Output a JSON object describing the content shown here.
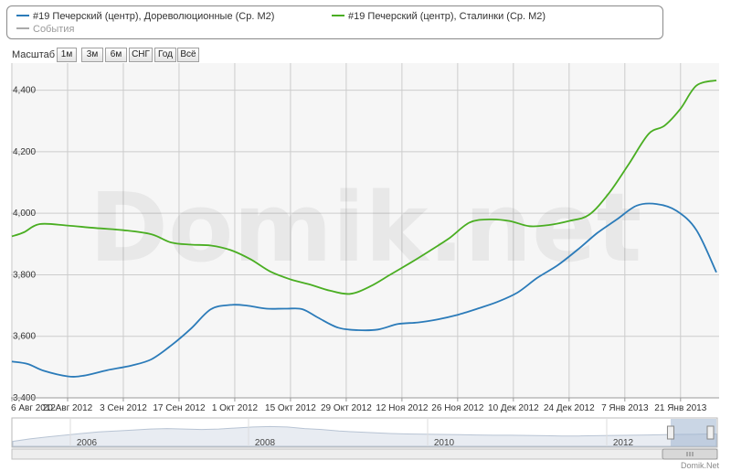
{
  "legend": {
    "series1": "#19 Печерский (центр), Дореволюционные (Ср. М2)",
    "series2": "#19 Печерский (центр), Сталинки (Ср. М2)",
    "events": "События"
  },
  "zoom": {
    "label": "Масштаб",
    "buttons": [
      "1м",
      "3м",
      "6м",
      "СНГ",
      "Год",
      "Всё"
    ]
  },
  "watermark": "Domik.net",
  "credit": "Domik.Net",
  "colors": {
    "series1": "#2b7bb9",
    "series2": "#4aae22",
    "events": "#aaaaaa",
    "grid": "#cccccc",
    "navigator_fill": "#e8ecf2",
    "navigator_line": "#b8c4d4",
    "navigator_mask": "#9fb4d0",
    "plot_background": "#f6f6f6"
  },
  "navigator": {
    "years": [
      "2006",
      "2008",
      "2010",
      "2012"
    ],
    "profile": [
      0.2,
      0.3,
      0.38,
      0.45,
      0.52,
      0.58,
      0.62,
      0.66,
      0.7,
      0.72,
      0.7,
      0.68,
      0.7,
      0.74,
      0.78,
      0.8,
      0.78,
      0.72,
      0.68,
      0.62,
      0.58,
      0.55,
      0.52,
      0.5,
      0.49,
      0.48,
      0.47,
      0.46,
      0.45,
      0.45,
      0.44,
      0.43,
      0.42,
      0.42,
      0.43,
      0.44,
      0.45,
      0.46,
      0.47,
      0.48,
      0.49,
      0.5
    ],
    "selected_from_fraction": 0.935,
    "selected_to_fraction": 1.0
  },
  "chart_data": {
    "type": "line",
    "x_labels": [
      "6 Авг 2012",
      "20 Авг 2012",
      "3 Сен 2012",
      "17 Сен 2012",
      "1 Окт 2012",
      "15 Окт 2012",
      "29 Окт 2012",
      "12 Ноя 2012",
      "26 Ноя 2012",
      "10 Дек 2012",
      "24 Дек 2012",
      "7 Янв 2013",
      "21 Янв 2013"
    ],
    "x_start": "2012-08-06",
    "x_end": "2013-01-30",
    "ylim": [
      3400,
      4500
    ],
    "y_ticks": [
      3400,
      3600,
      3800,
      4000,
      4200,
      4400
    ],
    "grid": true,
    "legend_position": "top",
    "series": [
      {
        "name": "#19 Печерский (центр), Дореволюционные (Ср. М2)",
        "points": [
          [
            "2012-08-06",
            3518
          ],
          [
            "2012-08-10",
            3510
          ],
          [
            "2012-08-14",
            3488
          ],
          [
            "2012-08-20",
            3470
          ],
          [
            "2012-08-24",
            3472
          ],
          [
            "2012-08-30",
            3490
          ],
          [
            "2012-09-05",
            3505
          ],
          [
            "2012-09-10",
            3525
          ],
          [
            "2012-09-15",
            3570
          ],
          [
            "2012-09-20",
            3625
          ],
          [
            "2012-09-25",
            3688
          ],
          [
            "2012-09-30",
            3702
          ],
          [
            "2012-10-04",
            3700
          ],
          [
            "2012-10-09",
            3690
          ],
          [
            "2012-10-14",
            3690
          ],
          [
            "2012-10-18",
            3688
          ],
          [
            "2012-10-22",
            3660
          ],
          [
            "2012-10-27",
            3628
          ],
          [
            "2012-11-01",
            3620
          ],
          [
            "2012-11-06",
            3622
          ],
          [
            "2012-11-11",
            3640
          ],
          [
            "2012-11-16",
            3645
          ],
          [
            "2012-11-21",
            3655
          ],
          [
            "2012-11-26",
            3670
          ],
          [
            "2012-12-01",
            3690
          ],
          [
            "2012-12-06",
            3712
          ],
          [
            "2012-12-11",
            3742
          ],
          [
            "2012-12-16",
            3790
          ],
          [
            "2012-12-21",
            3830
          ],
          [
            "2012-12-26",
            3880
          ],
          [
            "2012-12-31",
            3935
          ],
          [
            "2013-01-05",
            3980
          ],
          [
            "2013-01-10",
            4025
          ],
          [
            "2013-01-15",
            4030
          ],
          [
            "2013-01-20",
            4008
          ],
          [
            "2013-01-25",
            3945
          ],
          [
            "2013-01-30",
            3808
          ]
        ]
      },
      {
        "name": "#19 Печерский (центр), Сталинки (Ср. М2)",
        "points": [
          [
            "2012-08-06",
            3925
          ],
          [
            "2012-08-09",
            3938
          ],
          [
            "2012-08-13",
            3965
          ],
          [
            "2012-08-20",
            3960
          ],
          [
            "2012-08-27",
            3952
          ],
          [
            "2012-09-03",
            3945
          ],
          [
            "2012-09-10",
            3932
          ],
          [
            "2012-09-15",
            3905
          ],
          [
            "2012-09-20",
            3898
          ],
          [
            "2012-09-25",
            3895
          ],
          [
            "2012-09-30",
            3880
          ],
          [
            "2012-10-05",
            3850
          ],
          [
            "2012-10-10",
            3810
          ],
          [
            "2012-10-15",
            3785
          ],
          [
            "2012-10-20",
            3768
          ],
          [
            "2012-10-25",
            3748
          ],
          [
            "2012-10-30",
            3738
          ],
          [
            "2012-11-04",
            3762
          ],
          [
            "2012-11-09",
            3800
          ],
          [
            "2012-11-14",
            3838
          ],
          [
            "2012-11-19",
            3878
          ],
          [
            "2012-11-24",
            3920
          ],
          [
            "2012-11-29",
            3970
          ],
          [
            "2012-12-04",
            3980
          ],
          [
            "2012-12-09",
            3975
          ],
          [
            "2012-12-14",
            3958
          ],
          [
            "2012-12-19",
            3962
          ],
          [
            "2012-12-24",
            3975
          ],
          [
            "2012-12-29",
            3995
          ],
          [
            "2013-01-03",
            4065
          ],
          [
            "2013-01-08",
            4160
          ],
          [
            "2013-01-13",
            4258
          ],
          [
            "2013-01-17",
            4285
          ],
          [
            "2013-01-21",
            4340
          ],
          [
            "2013-01-25",
            4415
          ],
          [
            "2013-01-30",
            4432
          ]
        ]
      }
    ]
  }
}
